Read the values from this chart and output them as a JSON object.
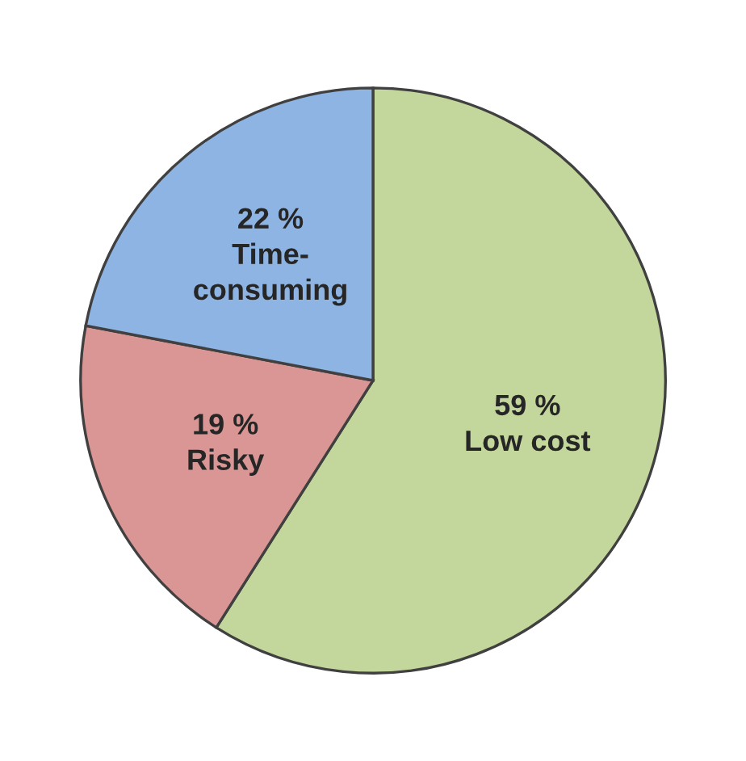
{
  "chart_data": {
    "type": "pie",
    "categories": [
      "Low cost",
      "Risky",
      "Time-\nconsuming"
    ],
    "values": [
      59,
      19,
      22
    ],
    "value_labels": [
      "59 %",
      "19 %",
      "22 %"
    ],
    "colors": [
      "#c3d69b",
      "#d99694",
      "#8eb4e3"
    ]
  }
}
